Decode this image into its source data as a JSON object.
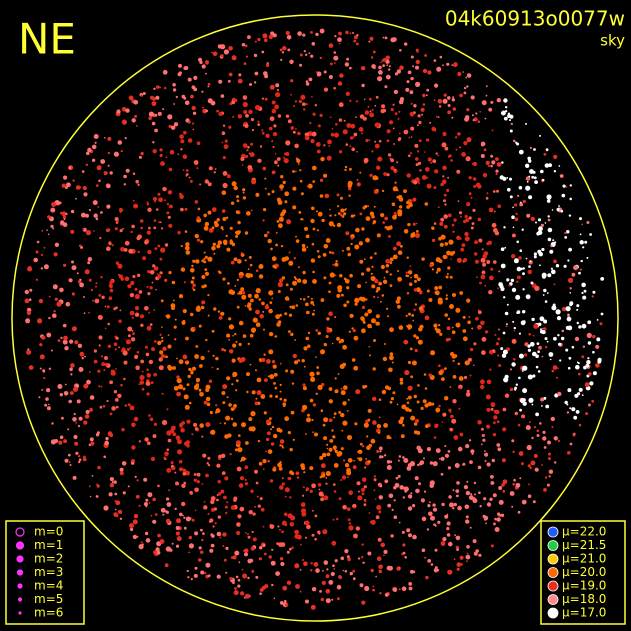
{
  "header": {
    "direction": "NE",
    "id": "04k60913o0077w",
    "subtitle": "sky"
  },
  "legend_m": {
    "items": [
      "m=0",
      "m=1",
      "m=2",
      "m=3",
      "m=4",
      "m=5",
      "m=6"
    ]
  },
  "legend_mu": {
    "items": [
      "μ=22.0",
      "μ=21.5",
      "μ=21.0",
      "μ=20.0",
      "μ=19.0",
      "μ=18.0",
      "μ=17.0"
    ]
  }
}
